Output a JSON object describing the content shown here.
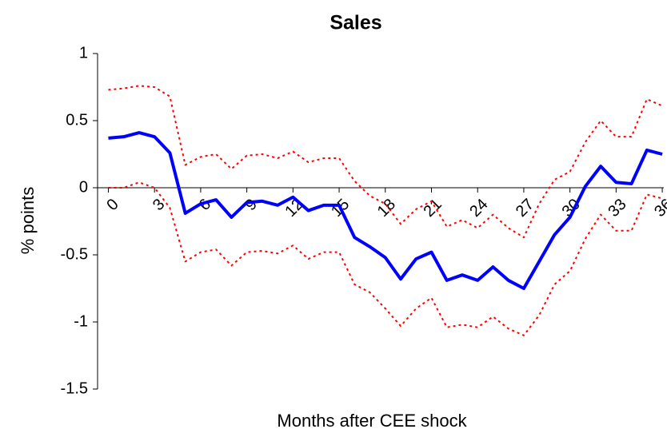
{
  "chart_data": {
    "type": "line",
    "title": "Sales",
    "x_label": "Months after CEE shock",
    "y_label": "% points",
    "x": [
      0,
      1,
      2,
      3,
      4,
      5,
      6,
      7,
      8,
      9,
      10,
      11,
      12,
      13,
      14,
      15,
      16,
      17,
      18,
      19,
      20,
      21,
      22,
      23,
      24,
      25,
      26,
      27,
      28,
      29,
      30,
      31,
      32,
      33,
      34,
      35,
      36
    ],
    "xlim": [
      -0.7,
      36.1
    ],
    "xticks": [
      0,
      3,
      6,
      9,
      12,
      15,
      18,
      21,
      24,
      27,
      30,
      33,
      36
    ],
    "ylim": [
      -1.5,
      1
    ],
    "yticks": [
      1,
      0.5,
      0,
      -0.5,
      -1,
      -1.5
    ],
    "series": [
      {
        "color": "#0000ff",
        "style": "solid",
        "values": [
          0.37,
          0.38,
          0.41,
          0.38,
          0.26,
          -0.19,
          -0.12,
          -0.09,
          -0.22,
          -0.11,
          -0.1,
          -0.13,
          -0.07,
          -0.17,
          -0.13,
          -0.13,
          -0.37,
          -0.44,
          -0.52,
          -0.68,
          -0.53,
          -0.48,
          -0.69,
          -0.65,
          -0.69,
          -0.59,
          -0.69,
          -0.75,
          -0.55,
          -0.35,
          -0.22,
          0.01,
          0.16,
          0.04,
          0.03,
          0.28,
          0.25
        ]
      },
      {
        "color": "#ff0000",
        "style": "dotted",
        "values": [
          0.73,
          0.74,
          0.76,
          0.75,
          0.68,
          0.17,
          0.23,
          0.25,
          0.14,
          0.24,
          0.25,
          0.22,
          0.27,
          0.19,
          0.22,
          0.22,
          0.05,
          -0.06,
          -0.12,
          -0.27,
          -0.16,
          -0.1,
          -0.29,
          -0.24,
          -0.3,
          -0.2,
          -0.3,
          -0.37,
          -0.12,
          0.06,
          0.12,
          0.34,
          0.5,
          0.38,
          0.38,
          0.66,
          0.61
        ]
      },
      {
        "color": "#ff0000",
        "style": "dotted",
        "values": [
          0.0,
          0.0,
          0.04,
          0.0,
          -0.15,
          -0.55,
          -0.48,
          -0.46,
          -0.58,
          -0.48,
          -0.47,
          -0.49,
          -0.43,
          -0.53,
          -0.48,
          -0.48,
          -0.72,
          -0.78,
          -0.9,
          -1.03,
          -0.9,
          -0.82,
          -1.04,
          -1.02,
          -1.04,
          -0.96,
          -1.05,
          -1.1,
          -0.95,
          -0.72,
          -0.62,
          -0.38,
          -0.2,
          -0.32,
          -0.32,
          -0.05,
          -0.08
        ]
      }
    ]
  }
}
